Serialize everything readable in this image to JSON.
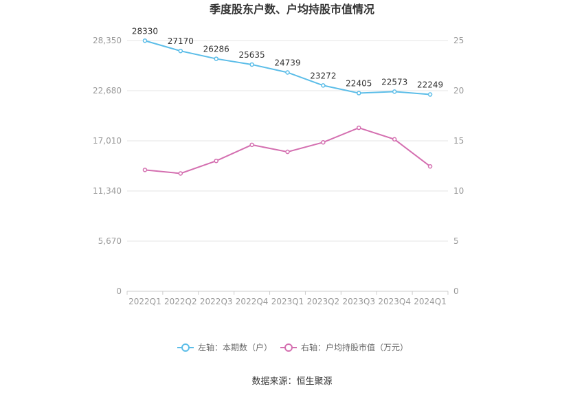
{
  "chart_data": {
    "type": "line",
    "title": "季度股东户数、户均持股市值情况",
    "categories": [
      "2022Q1",
      "2022Q2",
      "2022Q3",
      "2022Q4",
      "2023Q1",
      "2023Q2",
      "2023Q3",
      "2023Q4",
      "2024Q1"
    ],
    "left_axis": {
      "ticks": [
        "0",
        "5,670",
        "11,340",
        "17,010",
        "22,680",
        "28,350"
      ],
      "ylim": [
        0,
        28350
      ]
    },
    "right_axis": {
      "ticks": [
        "0",
        "5",
        "10",
        "15",
        "20",
        "25"
      ],
      "ylim": [
        0,
        25
      ]
    },
    "series": [
      {
        "name": "左轴：本期数（户）",
        "axis": "left",
        "color": "#5bbde8",
        "values": [
          28330,
          27170,
          26286,
          25635,
          24739,
          23272,
          22405,
          22573,
          22249
        ],
        "labels": [
          "28330",
          "27170",
          "26286",
          "25635",
          "24739",
          "23272",
          "22405",
          "22573",
          "22249"
        ]
      },
      {
        "name": "右轴：户均持股市值（万元）",
        "axis": "right",
        "color": "#d46fb0",
        "values": [
          12.1,
          11.75,
          13.0,
          14.6,
          13.9,
          14.85,
          16.3,
          15.15,
          12.45
        ]
      }
    ],
    "legend_position": "bottom",
    "grid": true
  },
  "source": "数据来源：恒生聚源"
}
